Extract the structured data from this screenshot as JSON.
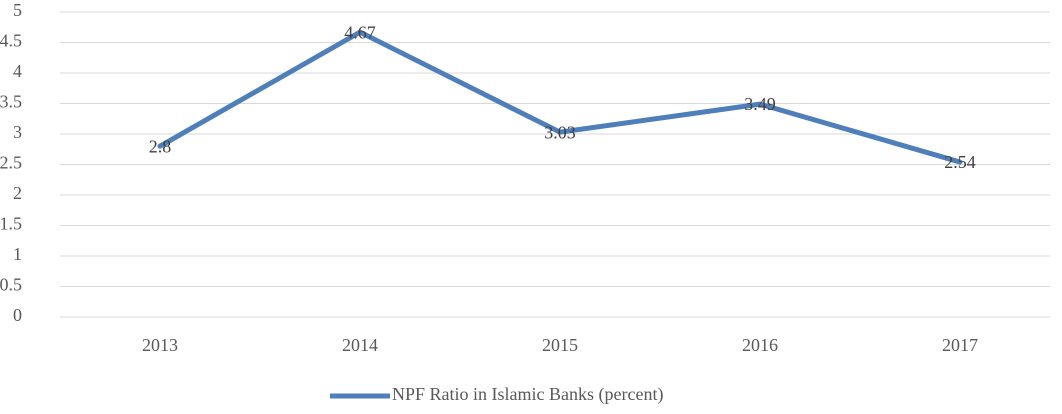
{
  "chart_data": {
    "type": "line",
    "categories": [
      "2013",
      "2014",
      "2015",
      "2016",
      "2017"
    ],
    "series": [
      {
        "name": "NPF Ratio in Islamic Banks (percent)",
        "color": "#4f7fba",
        "values": [
          2.8,
          4.67,
          3.03,
          3.49,
          2.54
        ]
      }
    ],
    "ylim": [
      0,
      5
    ],
    "yticks": [
      0,
      0.5,
      1,
      1.5,
      2,
      2.5,
      3,
      3.5,
      4,
      4.5,
      5
    ],
    "grid": true,
    "legend": "bottom"
  }
}
